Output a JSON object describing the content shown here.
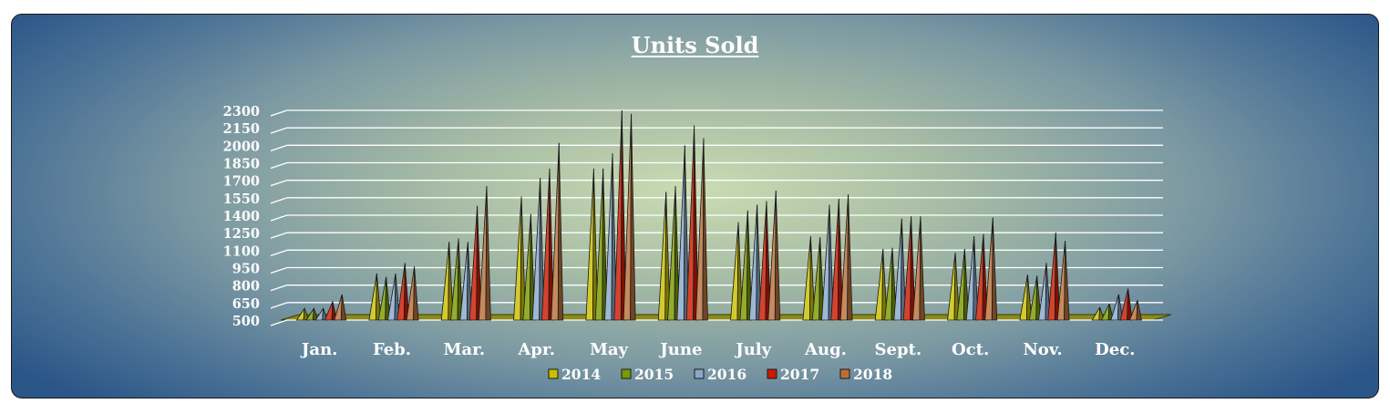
{
  "chart_data": {
    "type": "bar",
    "style": "3d-pyramid-columns",
    "title": "Units Sold",
    "xlabel": "",
    "ylabel": "",
    "ylim": [
      500,
      2300
    ],
    "yticks": [
      500,
      650,
      800,
      950,
      1100,
      1250,
      1400,
      1550,
      1700,
      1850,
      2000,
      2150,
      2300
    ],
    "grid": true,
    "legend": "bottom",
    "categories": [
      "Jan.",
      "Feb.",
      "Mar.",
      "Apr.",
      "May",
      "June",
      "July",
      "Aug.",
      "Sept.",
      "Oct.",
      "Nov.",
      "Dec."
    ],
    "series": [
      {
        "name": "2014",
        "color": "#c8c000",
        "values": [
          600,
          900,
          1170,
          1560,
          1800,
          1600,
          1340,
          1220,
          1110,
          1080,
          890,
          610
        ]
      },
      {
        "name": "2015",
        "color": "#7a9a00",
        "values": [
          600,
          870,
          1200,
          1410,
          1800,
          1650,
          1440,
          1210,
          1120,
          1110,
          880,
          640
        ]
      },
      {
        "name": "2016",
        "color": "#88a8cc",
        "values": [
          600,
          900,
          1170,
          1720,
          1930,
          2000,
          1490,
          1490,
          1370,
          1220,
          990,
          720
        ]
      },
      {
        "name": "2017",
        "color": "#cc1a00",
        "values": [
          660,
          990,
          1480,
          1800,
          2300,
          2170,
          1520,
          1540,
          1390,
          1240,
          1250,
          770
        ]
      },
      {
        "name": "2018",
        "color": "#b8703a",
        "values": [
          720,
          960,
          1650,
          2020,
          2270,
          2060,
          1610,
          1580,
          1390,
          1380,
          1180,
          670
        ]
      }
    ]
  }
}
